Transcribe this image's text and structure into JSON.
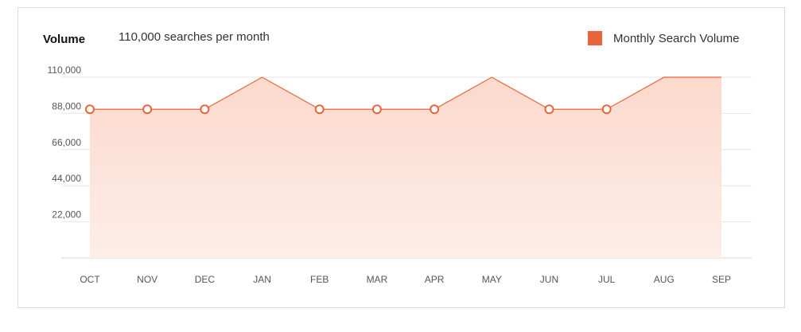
{
  "header": {
    "title": "Volume",
    "subtitle": "110,000 searches per month"
  },
  "legend": {
    "label": "Monthly Search Volume"
  },
  "colors": {
    "accent": "#e8643a",
    "fill_top": "#fcd9cc",
    "fill_bottom": "#fdeee8",
    "grid": "#e5e5e5"
  },
  "chart_data": {
    "type": "area",
    "categories": [
      "OCT",
      "NOV",
      "DEC",
      "JAN",
      "FEB",
      "MAR",
      "APR",
      "MAY",
      "JUN",
      "JUL",
      "AUG",
      "SEP"
    ],
    "series": [
      {
        "name": "Monthly Search Volume",
        "values": [
          90500,
          90500,
          90500,
          110000,
          90500,
          90500,
          90500,
          110000,
          90500,
          90500,
          110000,
          110000
        ]
      }
    ],
    "ylim": [
      0,
      110000
    ],
    "yticks": [
      22000,
      44000,
      66000,
      88000,
      110000
    ],
    "ytick_labels": [
      "22,000",
      "44,000",
      "66,000",
      "88,000",
      "110,000"
    ],
    "grid": true,
    "legend_position": "top-right"
  }
}
